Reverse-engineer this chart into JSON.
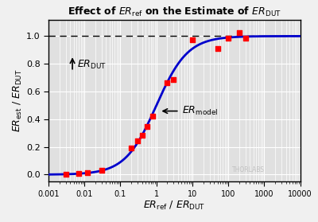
{
  "title": "Effect of $\\mathit{ER}_{\\mathrm{ref}}$ on the Estimate of $\\mathit{ER}_{\\mathrm{DUT}}$",
  "xlabel": "$\\mathit{ER}_{\\mathrm{ref}}$ / $\\mathit{ER}_{\\mathrm{DUT}}$",
  "ylabel": "$\\mathit{ER}_{\\mathrm{est}}$ / $\\mathit{ER}_{\\mathrm{DUT}}$",
  "xmin": 0.001,
  "xmax": 10000,
  "ymin": -0.05,
  "ymax": 1.12,
  "dashed_line_y": 1.0,
  "curve_color": "#0000CC",
  "curve_linewidth": 2.0,
  "data_points_x": [
    0.003,
    0.007,
    0.012,
    0.03,
    0.2,
    0.3,
    0.4,
    0.55,
    0.8,
    2.0,
    3.0,
    10.0,
    50.0,
    100.0,
    200.0,
    300.0
  ],
  "data_points_y": [
    0.003,
    0.007,
    0.012,
    0.03,
    0.19,
    0.245,
    0.285,
    0.35,
    0.42,
    0.665,
    0.685,
    0.975,
    0.91,
    0.985,
    1.025,
    0.985
  ],
  "point_color": "#FF0000",
  "point_size": 18,
  "bg_color": "#e0e0e0",
  "grid_color": "#ffffff",
  "fig_bg": "#f0f0f0",
  "thorlabs_text": "THORLABS",
  "thorlabs_color": "#bbbbbb"
}
